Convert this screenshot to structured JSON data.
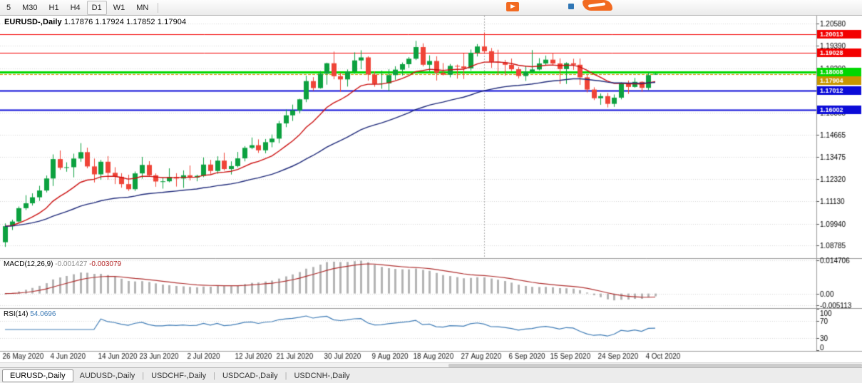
{
  "toolbar": {
    "timeframes": [
      "5",
      "M30",
      "H1",
      "H4",
      "D1",
      "W1",
      "MN"
    ],
    "active": "D1"
  },
  "chart": {
    "title": "EURUSD-,Daily",
    "ohlc": "1.17876 1.17924 1.17852 1.17904"
  },
  "branding": {
    "primary": "#f26a21",
    "secondary": "#2f76b5"
  },
  "tabs": [
    {
      "label": "EURUSD-,Daily",
      "active": true
    },
    {
      "label": "AUDUSD-,Daily",
      "active": false
    },
    {
      "label": "USDCHF-,Daily",
      "active": false
    },
    {
      "label": "USDCAD-,Daily",
      "active": false
    },
    {
      "label": "USDCNH-,Daily",
      "active": false
    }
  ],
  "chart_data": {
    "type": "candlestick",
    "symbol": "EURUSD-",
    "timeframe": "Daily",
    "price_range": [
      1.081,
      1.21
    ],
    "price_ticks": [
      "1.20580",
      "1.19390",
      "1.18200",
      "1.17010",
      "1.15855",
      "1.14665",
      "1.13475",
      "1.12320",
      "1.11130",
      "1.09940",
      "1.08785"
    ],
    "x_ticks": [
      {
        "label": "26 May 2020",
        "index": 0
      },
      {
        "label": "4 Jun 2020",
        "index": 7
      },
      {
        "label": "14 Jun 2020",
        "index": 14
      },
      {
        "label": "23 Jun 2020",
        "index": 20
      },
      {
        "label": "2 Jul 2020",
        "index": 27
      },
      {
        "label": "12 Jul 2020",
        "index": 34
      },
      {
        "label": "21 Jul 2020",
        "index": 40
      },
      {
        "label": "30 Jul 2020",
        "index": 47
      },
      {
        "label": "9 Aug 2020",
        "index": 54
      },
      {
        "label": "18 Aug 2020",
        "index": 60
      },
      {
        "label": "27 Aug 2020",
        "index": 67
      },
      {
        "label": "6 Sep 2020",
        "index": 74
      },
      {
        "label": "15 Sep 2020",
        "index": 80
      },
      {
        "label": "24 Sep 2020",
        "index": 87
      },
      {
        "label": "4 Oct 2020",
        "index": 94
      }
    ],
    "levels": [
      {
        "price": 1.20013,
        "label": "1.20013",
        "color": "#f30000",
        "width": 1
      },
      {
        "price": 1.19028,
        "label": "1.19028",
        "color": "#f30000",
        "width": 1
      },
      {
        "price": 1.18008,
        "label": "1.18008",
        "color": "#00d800",
        "width": 3
      },
      {
        "price": 1.17012,
        "label": "1.17012",
        "color": "#0b0bd8",
        "width": 2
      },
      {
        "price": 1.16002,
        "label": "1.16002",
        "color": "#0b0bd8",
        "width": 2
      }
    ],
    "last_price": {
      "value": 1.17904,
      "label": "1.17904",
      "color": "#c79600"
    },
    "vline_index": 70,
    "ma": [
      {
        "period": 13,
        "color": "#cc1111"
      },
      {
        "period": 40,
        "color": "#1f2a7a"
      }
    ],
    "colors": {
      "up": "#0ca13f",
      "down": "#ef4437",
      "grid": "#d9d9d9",
      "axis_text": "#000000",
      "histogram": "#b4b4b4",
      "macd_signal": "#b03030",
      "rsi_line": "#3f7cb6",
      "separator": "#9a9a9a"
    },
    "macd": {
      "label": "MACD(12,26,9)",
      "value_main": "-0.001427",
      "value_signal": "-0.003079",
      "fast": 12,
      "slow": 26,
      "signal": 9,
      "axis": [
        "0.014706",
        "0.00",
        "-0.005113"
      ],
      "range": [
        -0.0062,
        0.0155
      ]
    },
    "rsi": {
      "label": "RSI(14)",
      "value": "54.0696",
      "period": 14,
      "axis": [
        "100",
        "70",
        "30",
        "0"
      ],
      "guide_levels": [
        70,
        30
      ]
    },
    "candles": [
      [
        1.0895,
        1.0995,
        1.087,
        1.098
      ],
      [
        1.098,
        1.1015,
        1.096,
        1.1005
      ],
      [
        1.1005,
        1.1085,
        1.1,
        1.1076
      ],
      [
        1.1076,
        1.1145,
        1.1066,
        1.1102
      ],
      [
        1.1102,
        1.1155,
        1.109,
        1.1134
      ],
      [
        1.1134,
        1.1195,
        1.1115,
        1.117
      ],
      [
        1.117,
        1.125,
        1.116,
        1.1234
      ],
      [
        1.1234,
        1.1362,
        1.1194,
        1.1337
      ],
      [
        1.1337,
        1.1383,
        1.128,
        1.1291
      ],
      [
        1.1291,
        1.132,
        1.127,
        1.1294
      ],
      [
        1.1294,
        1.1366,
        1.124,
        1.134
      ],
      [
        1.134,
        1.1422,
        1.1323,
        1.1374
      ],
      [
        1.1374,
        1.1398,
        1.1288,
        1.1298
      ],
      [
        1.1298,
        1.134,
        1.1213,
        1.1256
      ],
      [
        1.1256,
        1.1333,
        1.1227,
        1.1323
      ],
      [
        1.1323,
        1.1353,
        1.1228,
        1.1264
      ],
      [
        1.1264,
        1.1294,
        1.1204,
        1.1243
      ],
      [
        1.1243,
        1.1262,
        1.1185,
        1.1204
      ],
      [
        1.1204,
        1.1254,
        1.1168,
        1.1177
      ],
      [
        1.1177,
        1.1271,
        1.1168,
        1.1261
      ],
      [
        1.1261,
        1.1349,
        1.1233,
        1.1306
      ],
      [
        1.1306,
        1.1326,
        1.1247,
        1.1251
      ],
      [
        1.1251,
        1.1261,
        1.119,
        1.1218
      ],
      [
        1.1218,
        1.1239,
        1.118,
        1.1219
      ],
      [
        1.1219,
        1.1288,
        1.1214,
        1.1242
      ],
      [
        1.1242,
        1.1262,
        1.1191,
        1.1234
      ],
      [
        1.1234,
        1.1277,
        1.1184,
        1.1251
      ],
      [
        1.1251,
        1.1303,
        1.1223,
        1.1239
      ],
      [
        1.1239,
        1.1254,
        1.1219,
        1.1248
      ],
      [
        1.1248,
        1.1346,
        1.1241,
        1.1308
      ],
      [
        1.1308,
        1.1333,
        1.1259,
        1.1274
      ],
      [
        1.1274,
        1.1352,
        1.1259,
        1.1329
      ],
      [
        1.1329,
        1.1371,
        1.1277,
        1.1284
      ],
      [
        1.1284,
        1.1325,
        1.1255,
        1.13
      ],
      [
        1.13,
        1.1375,
        1.1293,
        1.1341
      ],
      [
        1.1341,
        1.1406,
        1.1325,
        1.1397
      ],
      [
        1.1397,
        1.1452,
        1.139,
        1.1411
      ],
      [
        1.1411,
        1.1442,
        1.137,
        1.1384
      ],
      [
        1.1384,
        1.1444,
        1.1368,
        1.1427
      ],
      [
        1.1427,
        1.1468,
        1.14,
        1.1446
      ],
      [
        1.1446,
        1.154,
        1.1422,
        1.1527
      ],
      [
        1.1527,
        1.1601,
        1.1507,
        1.157
      ],
      [
        1.157,
        1.1627,
        1.154,
        1.1596
      ],
      [
        1.1596,
        1.1658,
        1.158,
        1.1655
      ],
      [
        1.1655,
        1.1781,
        1.164,
        1.1752
      ],
      [
        1.1752,
        1.1773,
        1.1701,
        1.1715
      ],
      [
        1.1715,
        1.1806,
        1.1712,
        1.1791
      ],
      [
        1.1791,
        1.185,
        1.1733,
        1.1847
      ],
      [
        1.1847,
        1.1909,
        1.1762,
        1.1778
      ],
      [
        1.1778,
        1.1797,
        1.1695,
        1.1761
      ],
      [
        1.1761,
        1.1814,
        1.1723,
        1.1803
      ],
      [
        1.1803,
        1.1905,
        1.1791,
        1.1862
      ],
      [
        1.1862,
        1.1916,
        1.1815,
        1.1878
      ],
      [
        1.1878,
        1.1884,
        1.1754,
        1.1787
      ],
      [
        1.1787,
        1.1804,
        1.1722,
        1.1738
      ],
      [
        1.1738,
        1.1808,
        1.1711,
        1.174
      ],
      [
        1.174,
        1.1815,
        1.17,
        1.1784
      ],
      [
        1.1784,
        1.1831,
        1.1759,
        1.1813
      ],
      [
        1.1813,
        1.1851,
        1.1782,
        1.1842
      ],
      [
        1.1842,
        1.188,
        1.1823,
        1.1871
      ],
      [
        1.1871,
        1.1966,
        1.1864,
        1.1933
      ],
      [
        1.1933,
        1.1953,
        1.183,
        1.1839
      ],
      [
        1.1839,
        1.1889,
        1.1804,
        1.1859
      ],
      [
        1.1859,
        1.1884,
        1.1755,
        1.1796
      ],
      [
        1.1796,
        1.1848,
        1.1782,
        1.1786
      ],
      [
        1.1786,
        1.1843,
        1.1772,
        1.1833
      ],
      [
        1.1833,
        1.184,
        1.1765,
        1.183
      ],
      [
        1.183,
        1.1899,
        1.1763,
        1.182
      ],
      [
        1.182,
        1.192,
        1.1808,
        1.1903
      ],
      [
        1.1903,
        1.1949,
        1.1883,
        1.1936
      ],
      [
        1.1936,
        1.2011,
        1.1898,
        1.1911
      ],
      [
        1.1911,
        1.1928,
        1.1822,
        1.1855
      ],
      [
        1.1855,
        1.1919,
        1.1789,
        1.1852
      ],
      [
        1.1852,
        1.1865,
        1.1781,
        1.1839
      ],
      [
        1.1839,
        1.1872,
        1.1805,
        1.1815
      ],
      [
        1.1815,
        1.1827,
        1.1766,
        1.1779
      ],
      [
        1.1779,
        1.1834,
        1.1753,
        1.1802
      ],
      [
        1.1802,
        1.1917,
        1.1793,
        1.1814
      ],
      [
        1.1814,
        1.1874,
        1.1809,
        1.1846
      ],
      [
        1.1846,
        1.1888,
        1.1836,
        1.1866
      ],
      [
        1.1866,
        1.1901,
        1.1838,
        1.1846
      ],
      [
        1.1846,
        1.1873,
        1.1737,
        1.1816
      ],
      [
        1.1816,
        1.1852,
        1.1737,
        1.1847
      ],
      [
        1.1847,
        1.1871,
        1.1812,
        1.1839
      ],
      [
        1.1839,
        1.1872,
        1.1732,
        1.1772
      ],
      [
        1.1772,
        1.1787,
        1.1692,
        1.1707
      ],
      [
        1.1707,
        1.1719,
        1.1651,
        1.1661
      ],
      [
        1.1661,
        1.1686,
        1.1626,
        1.1672
      ],
      [
        1.1672,
        1.1689,
        1.1612,
        1.1631
      ],
      [
        1.1631,
        1.1681,
        1.1615,
        1.1664
      ],
      [
        1.1664,
        1.1745,
        1.1655,
        1.1742
      ],
      [
        1.1742,
        1.1755,
        1.1684,
        1.1721
      ],
      [
        1.1721,
        1.1769,
        1.1717,
        1.1748
      ],
      [
        1.1748,
        1.1751,
        1.1695,
        1.1716
      ],
      [
        1.1716,
        1.1799,
        1.1705,
        1.1784
      ],
      [
        1.17876,
        1.17924,
        1.17852,
        1.17904
      ]
    ]
  }
}
